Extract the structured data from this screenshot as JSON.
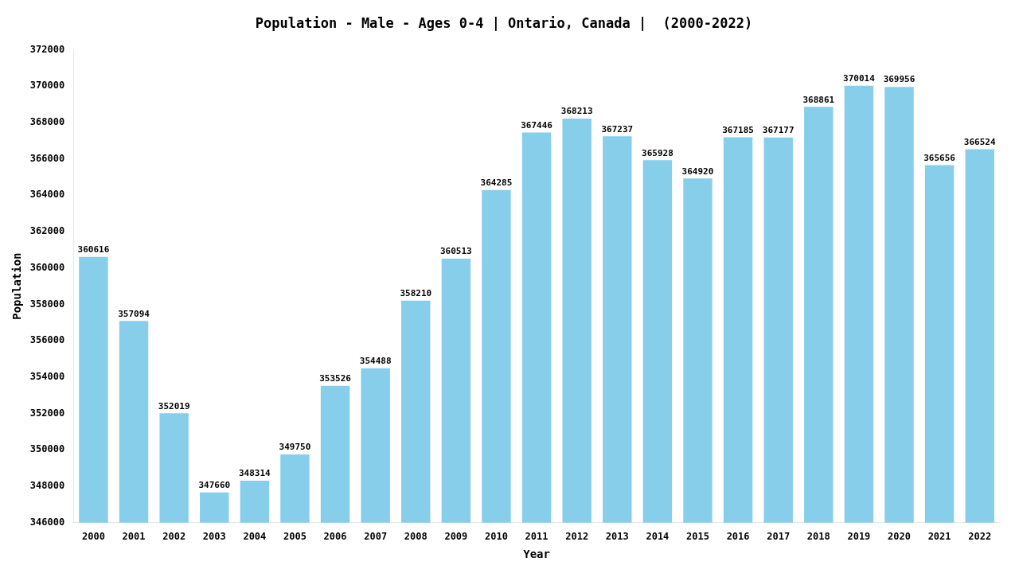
{
  "chart_data": {
    "type": "bar",
    "title": "Population - Male - Ages 0-4 | Ontario, Canada |  (2000-2022)",
    "x_label": "Year",
    "y_label": "Population",
    "categories": [
      "2000",
      "2001",
      "2002",
      "2003",
      "2004",
      "2005",
      "2006",
      "2007",
      "2008",
      "2009",
      "2010",
      "2011",
      "2012",
      "2013",
      "2014",
      "2015",
      "2016",
      "2017",
      "2018",
      "2019",
      "2020",
      "2021",
      "2022"
    ],
    "values": [
      360616,
      357094,
      352019,
      347660,
      348314,
      349750,
      353526,
      354488,
      358210,
      360513,
      364285,
      367446,
      368213,
      367237,
      365928,
      364920,
      367185,
      367177,
      368861,
      370014,
      369956,
      365656,
      366524
    ],
    "color": "#87ceeb",
    "ylim": [
      346000,
      372000
    ],
    "yticks": [
      346000,
      348000,
      350000,
      352000,
      354000,
      356000,
      358000,
      360000,
      362000,
      364000,
      366000,
      368000,
      370000,
      372000
    ],
    "grid": false,
    "data_labels": true
  }
}
